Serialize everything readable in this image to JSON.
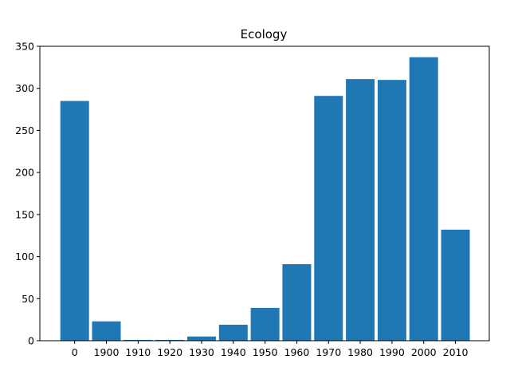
{
  "chart_data": {
    "type": "bar",
    "title": "Ecology",
    "xlabel": "",
    "ylabel": "",
    "categories": [
      "0",
      "1900",
      "1910",
      "1920",
      "1930",
      "1940",
      "1950",
      "1960",
      "1970",
      "1980",
      "1990",
      "2000",
      "2010"
    ],
    "values": [
      285,
      23,
      1,
      1,
      5,
      19,
      39,
      91,
      291,
      311,
      310,
      337,
      132
    ],
    "ylim": [
      0,
      350
    ],
    "yticks": [
      0,
      50,
      100,
      150,
      200,
      250,
      300,
      350
    ],
    "bar_color": "#1f77b4",
    "grid": false,
    "legend": "none"
  }
}
